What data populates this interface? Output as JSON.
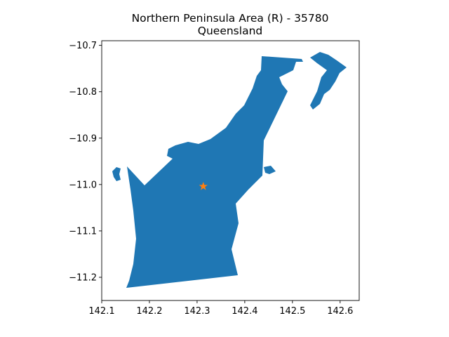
{
  "title": {
    "line1": "Northern Peninsula Area (R) - 35780",
    "line2": "Queensland"
  },
  "map": {
    "region_name": "Northern Peninsula Area (R)",
    "region_code": "35780",
    "state": "Queensland",
    "fill_color": "#1f77b4",
    "marker": {
      "shape": "star",
      "color": "#ff7f0e",
      "lon": 142.313,
      "lat": -11.004
    }
  },
  "axes": {
    "xlim": [
      142.1,
      142.64
    ],
    "ylim": [
      -11.25,
      -10.69
    ],
    "x_ticks": [
      {
        "value": 142.1,
        "label": "142.1"
      },
      {
        "value": 142.2,
        "label": "142.2"
      },
      {
        "value": 142.3,
        "label": "142.3"
      },
      {
        "value": 142.4,
        "label": "142.4"
      },
      {
        "value": 142.5,
        "label": "142.5"
      },
      {
        "value": 142.6,
        "label": "142.6"
      }
    ],
    "y_ticks": [
      {
        "value": -10.7,
        "label": "−10.7"
      },
      {
        "value": -10.8,
        "label": "−10.8"
      },
      {
        "value": -10.9,
        "label": "−10.9"
      },
      {
        "value": -11.0,
        "label": "−11.0"
      },
      {
        "value": -11.1,
        "label": "−11.1"
      },
      {
        "value": -11.2,
        "label": "−11.2"
      }
    ]
  }
}
